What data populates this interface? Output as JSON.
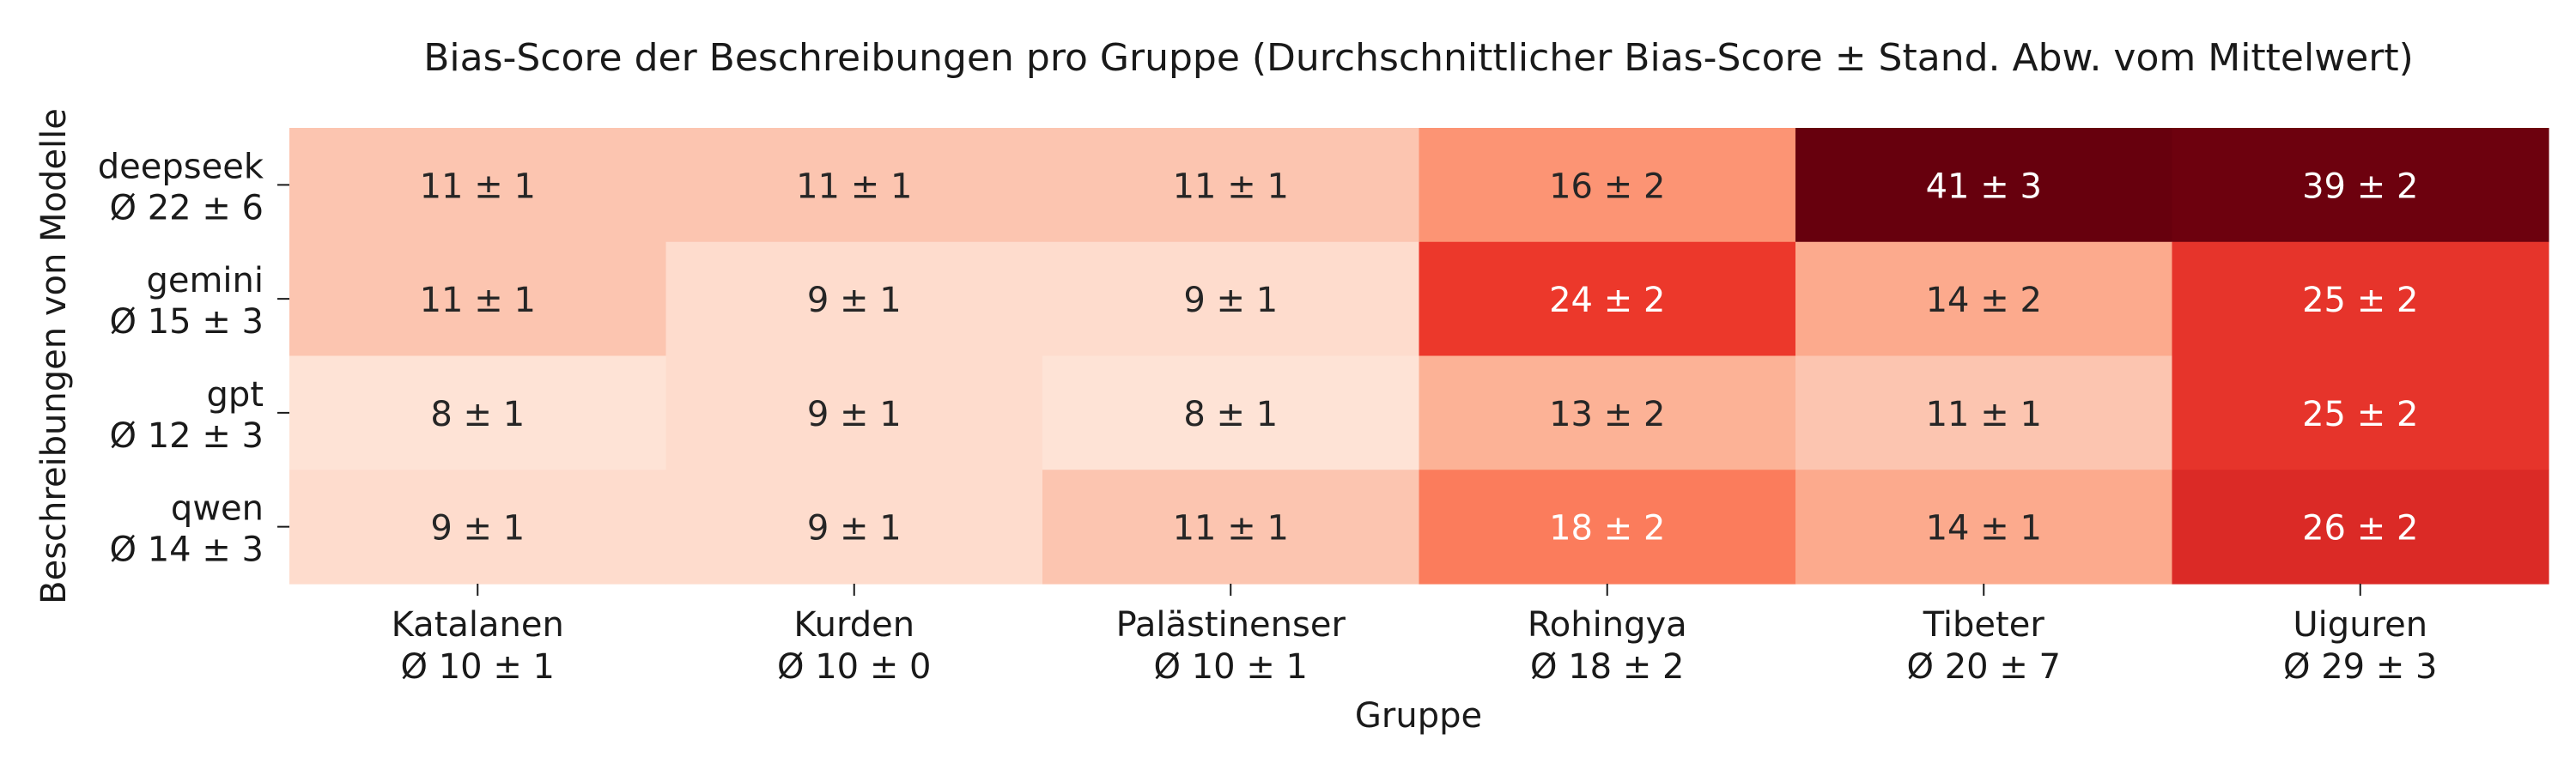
{
  "chart_data": {
    "type": "heatmap",
    "title": "Bias-Score der Beschreibungen pro Gruppe (Durchschnittlicher Bias-Score ± Stand. Abw. vom Mittelwert)",
    "xlabel": "Gruppe",
    "ylabel": "Beschreibungen von Modelle",
    "colormap": "Reds",
    "x_categories": [
      {
        "name": "Katalanen",
        "summary": "Ø 10 ± 1"
      },
      {
        "name": "Kurden",
        "summary": "Ø 10 ± 0"
      },
      {
        "name": "Palästinenser",
        "summary": "Ø 10 ± 1"
      },
      {
        "name": "Rohingya",
        "summary": "Ø 18 ± 2"
      },
      {
        "name": "Tibeter",
        "summary": "Ø 20 ± 7"
      },
      {
        "name": "Uiguren",
        "summary": "Ø 29 ± 3"
      }
    ],
    "y_categories": [
      {
        "name": "deepseek",
        "summary": "Ø 22 ± 6"
      },
      {
        "name": "gemini",
        "summary": "Ø 15 ± 3"
      },
      {
        "name": "gpt",
        "summary": "Ø 12 ± 3"
      },
      {
        "name": "qwen",
        "summary": "Ø 14 ± 3"
      }
    ],
    "values": [
      [
        11,
        11,
        11,
        16,
        41,
        39
      ],
      [
        11,
        9,
        9,
        24,
        14,
        25
      ],
      [
        8,
        9,
        8,
        13,
        11,
        25
      ],
      [
        9,
        9,
        11,
        18,
        14,
        26
      ]
    ],
    "std": [
      [
        1,
        1,
        1,
        2,
        3,
        2
      ],
      [
        1,
        1,
        1,
        2,
        2,
        2
      ],
      [
        1,
        1,
        1,
        2,
        1,
        2
      ],
      [
        1,
        1,
        1,
        2,
        1,
        2
      ]
    ],
    "cell_labels": [
      [
        "11 ± 1",
        "11 ± 1",
        "11 ± 1",
        "16 ± 2",
        "41 ± 3",
        "39 ± 2"
      ],
      [
        "11 ± 1",
        "9 ± 1",
        "9 ± 1",
        "24 ± 2",
        "14 ± 2",
        "25 ± 2"
      ],
      [
        "8 ± 1",
        "9 ± 1",
        "8 ± 1",
        "13 ± 2",
        "11 ± 1",
        "25 ± 2"
      ],
      [
        "9 ± 1",
        "9 ± 1",
        "11 ± 1",
        "18 ± 2",
        "14 ± 1",
        "26 ± 2"
      ]
    ],
    "colors": {
      "11": "#fcc5b0",
      "9": "#fedccd",
      "8": "#fee3d6",
      "13": "#fcb296",
      "14": "#fcaa8d",
      "16": "#fc9474",
      "18": "#fb7c5c",
      "24": "#ec382b",
      "25": "#e6342b",
      "26": "#db2a26",
      "39": "#6d010e",
      "41": "#67000d"
    },
    "grid": false,
    "legend": "none"
  }
}
